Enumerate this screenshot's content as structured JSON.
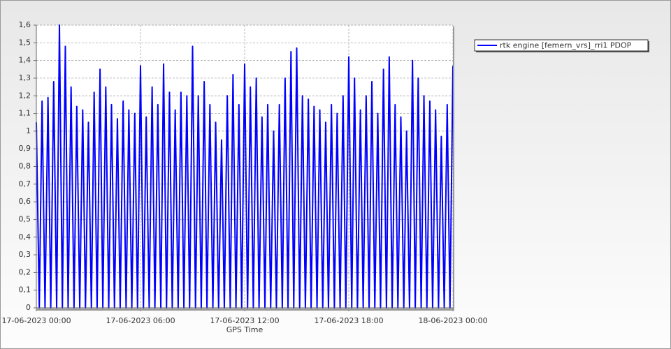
{
  "chart_data": {
    "type": "line",
    "x_label": "GPS Time",
    "x": [
      0,
      0.17,
      0.33,
      0.5,
      0.67,
      0.83,
      1,
      1.17,
      1.33,
      1.5,
      1.67,
      1.83,
      2,
      2.17,
      2.33,
      2.5,
      2.67,
      2.83,
      3,
      3.17,
      3.33,
      3.5,
      3.67,
      3.83,
      4,
      4.17,
      4.33,
      4.5,
      4.67,
      4.83,
      5,
      5.17,
      5.33,
      5.5,
      5.67,
      5.83,
      6,
      6.17,
      6.33,
      6.5,
      6.67,
      6.83,
      7,
      7.17,
      7.33,
      7.5,
      7.67,
      7.83,
      8,
      8.17,
      8.33,
      8.5,
      8.67,
      8.83,
      9,
      9.17,
      9.33,
      9.5,
      9.67,
      9.83,
      10,
      10.17,
      10.33,
      10.5,
      10.67,
      10.83,
      11,
      11.17,
      11.33,
      11.5,
      11.67,
      11.83,
      12,
      12.17,
      12.33,
      12.5,
      12.67,
      12.83,
      13,
      13.17,
      13.33,
      13.5,
      13.67,
      13.83,
      14,
      14.17,
      14.33,
      14.5,
      14.67,
      14.83,
      15,
      15.17,
      15.33,
      15.5,
      15.67,
      15.83,
      16,
      16.17,
      16.33,
      16.5,
      16.67,
      16.83,
      17,
      17.17,
      17.33,
      17.5,
      17.67,
      17.83,
      18,
      18.17,
      18.33,
      18.5,
      18.67,
      18.83,
      19,
      19.17,
      19.33,
      19.5,
      19.67,
      19.83,
      20,
      20.17,
      20.33,
      20.5,
      20.67,
      20.83,
      21,
      21.17,
      21.33,
      21.5,
      21.67,
      21.83,
      22,
      22.17,
      22.33,
      22.5,
      22.67,
      22.83,
      23,
      23.17,
      23.33,
      23.5,
      23.67,
      23.83,
      24
    ],
    "series": [
      {
        "name": "rtk engine [femern_vrs]_rri1 PDOP",
        "color": "#0000ff",
        "values": [
          1.05,
          0,
          1.17,
          0,
          1.19,
          0,
          1.28,
          0,
          1.6,
          0,
          1.48,
          0,
          1.25,
          0,
          1.14,
          0,
          1.12,
          0,
          1.05,
          0,
          1.22,
          0,
          1.35,
          0,
          1.25,
          0,
          1.15,
          0,
          1.07,
          0,
          1.17,
          0,
          1.12,
          0,
          1.1,
          0,
          1.37,
          0,
          1.08,
          0,
          1.25,
          0,
          1.15,
          0,
          1.38,
          0,
          1.22,
          0,
          1.12,
          0,
          1.22,
          0,
          1.2,
          0,
          1.48,
          0,
          1.2,
          0,
          1.28,
          0,
          1.15,
          0,
          1.05,
          0,
          0.95,
          0,
          1.2,
          0,
          1.32,
          0,
          1.15,
          0,
          1.38,
          0,
          1.25,
          0,
          1.3,
          0,
          1.08,
          0,
          1.15,
          0,
          1,
          0,
          1.15,
          0,
          1.3,
          0,
          1.45,
          0,
          1.47,
          0,
          1.2,
          0,
          1.18,
          0,
          1.14,
          0,
          1.12,
          0,
          1.05,
          0,
          1.15,
          0,
          1.1,
          0,
          1.2,
          0,
          1.42,
          0,
          1.3,
          0,
          1.12,
          0,
          1.2,
          0,
          1.28,
          0,
          1.1,
          0,
          1.35,
          0,
          1.42,
          0,
          1.15,
          0,
          1.08,
          0,
          1,
          0,
          1.4,
          0,
          1.3,
          0,
          1.2,
          0,
          1.17,
          0,
          1.12,
          0,
          0.97,
          0,
          1.15,
          0,
          1.37
        ]
      }
    ],
    "xlim": [
      0,
      24
    ],
    "xticks": [
      {
        "value": 0,
        "label": "17-06-2023 00:00"
      },
      {
        "value": 6,
        "label": "17-06-2023 06:00"
      },
      {
        "value": 12,
        "label": "17-06-2023 12:00"
      },
      {
        "value": 18,
        "label": "17-06-2023 18:00"
      },
      {
        "value": 24,
        "label": "18-06-2023 00:00"
      }
    ],
    "ylim": [
      0,
      1.6
    ],
    "yticks": [
      0,
      {
        "value": 0.1,
        "label": "0,1"
      },
      {
        "value": 0.2,
        "label": "0,2"
      },
      {
        "value": 0.3,
        "label": "0,3"
      },
      {
        "value": 0.4,
        "label": "0,4"
      },
      {
        "value": 0.5,
        "label": "0,5"
      },
      {
        "value": 0.6,
        "label": "0,6"
      },
      {
        "value": 0.7,
        "label": "0,7"
      },
      {
        "value": 0.8,
        "label": "0,8"
      },
      {
        "value": 0.9,
        "label": "0,9"
      },
      1,
      {
        "value": 1.1,
        "label": "1,1"
      },
      {
        "value": 1.2,
        "label": "1,2"
      },
      {
        "value": 1.3,
        "label": "1,3"
      },
      {
        "value": 1.4,
        "label": "1,4"
      },
      {
        "value": 1.5,
        "label": "1,5"
      },
      {
        "value": 1.6,
        "label": "1,6"
      }
    ],
    "grid": true,
    "legend": "upper right"
  }
}
